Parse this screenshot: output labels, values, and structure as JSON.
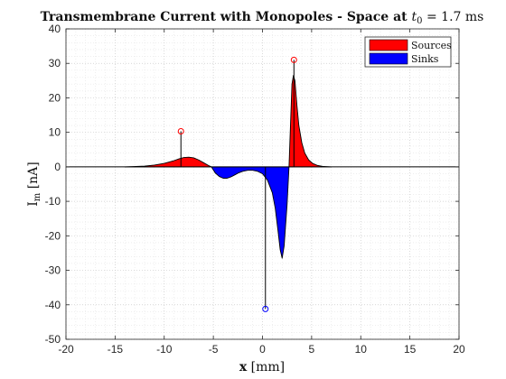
{
  "chart_data": {
    "type": "area",
    "title_text": "Transmembrane Current with Monopoles - Space at ",
    "title_symbol": "t",
    "title_subscript": "0",
    "title_value": " = 1.7 ms",
    "xlabel_main": "x",
    "xlabel_unit": " [mm]",
    "ylabel_main": "I",
    "ylabel_sub": "m",
    "ylabel_unit": " [nA]",
    "xlim": [
      -20,
      20
    ],
    "ylim": [
      -50,
      40
    ],
    "xticks": [
      -20,
      -15,
      -10,
      -5,
      0,
      5,
      10,
      15,
      20
    ],
    "yticks": [
      -50,
      -40,
      -30,
      -20,
      -10,
      0,
      10,
      20,
      30,
      40
    ],
    "grid": "dotted major and minor",
    "legend_position": "top-right",
    "series": [
      {
        "name": "Sources",
        "color": "#ff0000",
        "x": [
          -14,
          -12,
          -11,
          -10,
          -9,
          -8.5,
          -8,
          -7.5,
          -7,
          -6.5,
          -6,
          -5.5,
          -5.2
        ],
        "y": [
          0,
          0.2,
          0.5,
          1.0,
          1.8,
          2.3,
          2.7,
          2.8,
          2.6,
          2.0,
          1.2,
          0.4,
          0
        ]
      },
      {
        "name": "Sinks",
        "color": "#0000ff",
        "x": [
          -5.2,
          -4.8,
          -4.4,
          -4.0,
          -3.6,
          -3.2,
          -2.8,
          -2.4,
          -2.0,
          -1.5,
          -1.0,
          -0.5,
          0,
          0.5,
          1.0,
          1.3,
          1.6,
          1.8,
          2.0,
          2.2,
          2.5,
          2.7
        ],
        "y": [
          0,
          -1.8,
          -2.8,
          -3.3,
          -3.3,
          -2.9,
          -2.3,
          -1.7,
          -1.3,
          -1.0,
          -1.0,
          -1.3,
          -2.0,
          -3.8,
          -7.5,
          -12,
          -19,
          -24,
          -26.5,
          -23,
          -11,
          0
        ]
      },
      {
        "name": "Sources",
        "color": "#ff0000",
        "x": [
          2.7,
          2.85,
          3.0,
          3.15,
          3.3,
          3.5,
          3.7,
          4.0,
          4.3,
          4.7,
          5.1,
          5.6,
          6.2,
          7.0
        ],
        "y": [
          0,
          12,
          24,
          26.5,
          25,
          18,
          12,
          7,
          4,
          2,
          1,
          0.4,
          0.1,
          0
        ]
      }
    ],
    "monopoles": [
      {
        "type": "source",
        "x": -8.3,
        "y": 10.3,
        "color": "#ff0000"
      },
      {
        "type": "sink",
        "x": 0.3,
        "y": -41.2,
        "color": "#0000ff"
      },
      {
        "type": "source",
        "x": 3.2,
        "y": 31.0,
        "color": "#ff0000"
      }
    ],
    "legend": [
      {
        "name": "Sources",
        "color": "#ff0000"
      },
      {
        "name": "Sinks",
        "color": "#0000ff"
      }
    ]
  }
}
